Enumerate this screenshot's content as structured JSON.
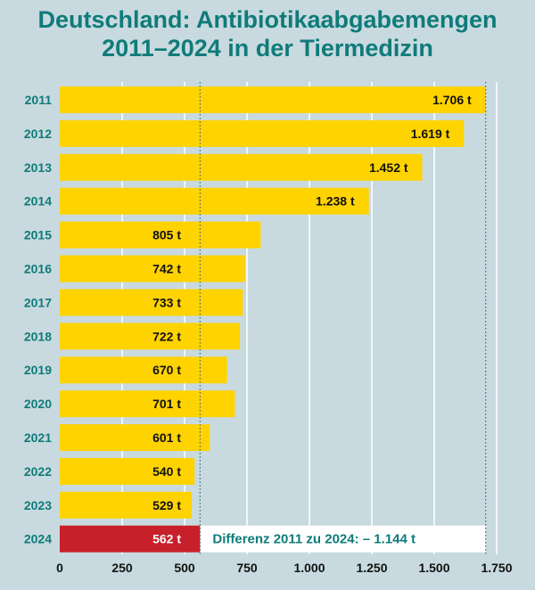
{
  "title_line1": "Deutschland: Antibiotikaabgabemengen",
  "title_line2": "2011–2024 in der Tiermedizin",
  "colors": {
    "bar": "#ffd300",
    "highlight": "#c8202a",
    "title": "#0f7b7a",
    "background": "#c8dadf"
  },
  "chart_data": {
    "type": "bar",
    "orientation": "horizontal",
    "title": "Deutschland: Antibiotikaabgabemengen 2011–2024 in der Tiermedizin",
    "categories": [
      "2011",
      "2012",
      "2013",
      "2014",
      "2015",
      "2016",
      "2017",
      "2018",
      "2019",
      "2020",
      "2021",
      "2022",
      "2023",
      "2024"
    ],
    "values": [
      1706,
      1619,
      1452,
      1238,
      805,
      742,
      733,
      722,
      670,
      701,
      601,
      540,
      529,
      562
    ],
    "data_labels": [
      "1.706 t",
      "1.619 t",
      "1.452 t",
      "1.238 t",
      "805 t",
      "742 t",
      "733 t",
      "722 t",
      "670 t",
      "701 t",
      "601 t",
      "540 t",
      "529 t",
      "562 t"
    ],
    "unit": "t",
    "xlim": [
      0,
      1750
    ],
    "xticks": [
      0,
      250,
      500,
      750,
      1000,
      1250,
      1500,
      1750
    ],
    "xtick_labels": [
      "0",
      "250",
      "500",
      "750",
      "1.000",
      "1.250",
      "1.500",
      "1.750"
    ],
    "grid": true,
    "reference_lines": [
      562,
      1706
    ],
    "annotation": "Differenz 2011 zu 2024: – 1.144 t"
  }
}
